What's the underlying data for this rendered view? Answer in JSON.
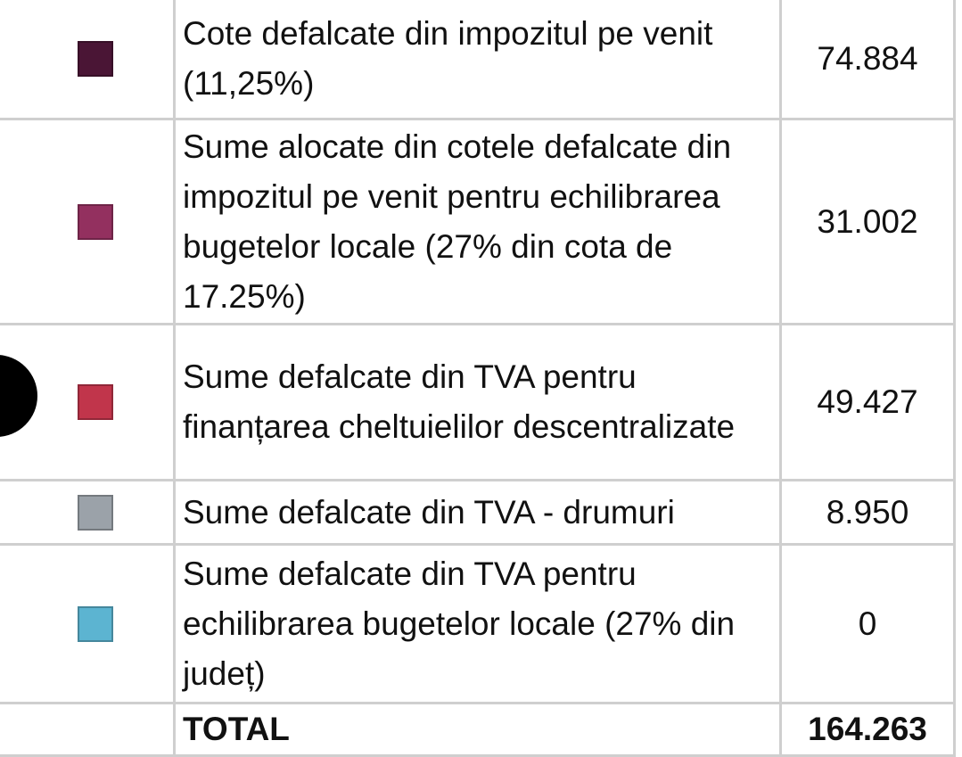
{
  "table": {
    "rows": [
      {
        "color": "#4a1535",
        "label": "Cote defalcate din impozitul pe venit (11,25%)",
        "value": "74.884"
      },
      {
        "color": "#93305f",
        "label": "Sume alocate din cotele defalcate din impozitul pe venit pentru echilibrarea bugetelor locale (27% din cota de 17.25%)",
        "value": "31.002"
      },
      {
        "color": "#c1354b",
        "label": "Sume defalcate din TVA pentru finanțarea cheltuielilor descentralizate",
        "value": "49.427"
      },
      {
        "color": "#9ba2a9",
        "label": "Sume defalcate din TVA - drumuri",
        "value": "8.950"
      },
      {
        "color": "#5cb4d1",
        "label": "Sume defalcate din TVA pentru echilibrarea bugetelor locale (27% din județ)",
        "value": "0"
      }
    ],
    "total": {
      "label": "TOTAL",
      "value": "164.263"
    }
  }
}
